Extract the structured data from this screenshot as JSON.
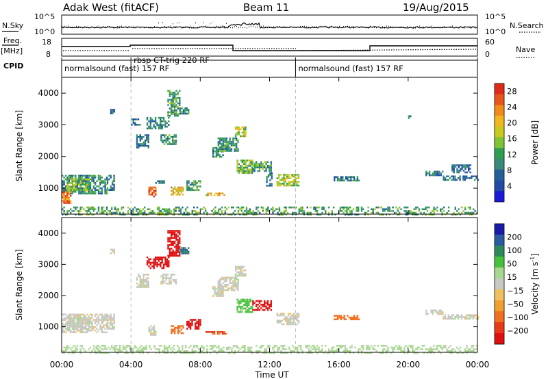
{
  "header": {
    "station": "Adak West (fitACF)",
    "beam": "Beam 11",
    "date": "19/Aug/2015"
  },
  "strips": {
    "nsky_label": "N.Sky",
    "nsearch_label": "N.Search",
    "noise_ticks": [
      "10^5",
      "10^0"
    ],
    "freq_label": "Freq.",
    "freq_unit": "[MHz]",
    "freq_ticks": [
      "18",
      "8"
    ],
    "nave_label": "Nave",
    "nave_ticks": [
      "60",
      "0"
    ],
    "cpid_label": "CPID",
    "cpid_segments": [
      {
        "label": "normalsound (fast) 157 RF",
        "start_h": 0,
        "end_h": 4.0
      },
      {
        "label": "rbsp CT-trig 220 RF",
        "start_h": 4.0,
        "end_h": 13.5
      },
      {
        "label": "normalsound (fast) 157 RF",
        "start_h": 13.5,
        "end_h": 24
      }
    ]
  },
  "chart_data": [
    {
      "type": "heatmap",
      "title": "Power",
      "xlabel": "Time UT",
      "ylabel": "Slant Range [km]",
      "xlim": [
        0,
        24
      ],
      "ylim": [
        180,
        4500
      ],
      "xticks": [
        "00:00",
        "04:00",
        "08:00",
        "12:00",
        "16:00",
        "20:00",
        "00:00"
      ],
      "yticks": [
        1000,
        2000,
        3000,
        4000
      ],
      "colorbar": {
        "label": "Power [dB]",
        "ticks": [
          4,
          8,
          12,
          16,
          20,
          24,
          28
        ],
        "range": [
          0,
          30
        ],
        "colors": [
          "#1a1ad8",
          "#2248a8",
          "#23609a",
          "#3a8a7a",
          "#2f9f4f",
          "#7fc433",
          "#c8c81e",
          "#f0b81c",
          "#f08a18",
          "#e85518",
          "#e02a18"
        ]
      },
      "patches": [
        {
          "t": 0.0,
          "t2": 2.6,
          "r": 820,
          "r2": 1420,
          "p": 10
        },
        {
          "t": 0.0,
          "t2": 0.5,
          "r": 560,
          "r2": 900,
          "p": 24
        },
        {
          "t": 0.3,
          "t2": 1.6,
          "r": 950,
          "r2": 1300,
          "p": 15
        },
        {
          "t": 2.6,
          "t2": 3.0,
          "r": 920,
          "r2": 1420,
          "p": 9
        },
        {
          "t": 2.8,
          "t2": 3.0,
          "r": 3350,
          "r2": 3500,
          "p": 8
        },
        {
          "t": 4.0,
          "t2": 4.5,
          "r": 3000,
          "r2": 3200,
          "p": 8
        },
        {
          "t": 4.3,
          "t2": 5.0,
          "r": 2300,
          "r2": 2700,
          "p": 8
        },
        {
          "t": 4.9,
          "t2": 6.2,
          "r": 2900,
          "r2": 3250,
          "p": 9
        },
        {
          "t": 5.0,
          "t2": 5.4,
          "r": 750,
          "r2": 1050,
          "p": 26
        },
        {
          "t": 5.4,
          "t2": 5.9,
          "r": 1150,
          "r2": 1250,
          "p": 9
        },
        {
          "t": 5.7,
          "t2": 6.6,
          "r": 2400,
          "r2": 2700,
          "p": 10
        },
        {
          "t": 6.1,
          "t2": 6.8,
          "r": 3300,
          "r2": 4100,
          "p": 12
        },
        {
          "t": 6.3,
          "t2": 7.0,
          "r": 780,
          "r2": 1050,
          "p": 20
        },
        {
          "t": 6.8,
          "t2": 7.3,
          "r": 3350,
          "r2": 3550,
          "p": 9
        },
        {
          "t": 7.2,
          "t2": 8.0,
          "r": 950,
          "r2": 1250,
          "p": 12
        },
        {
          "t": 8.3,
          "t2": 9.5,
          "r": 780,
          "r2": 860,
          "p": 20
        },
        {
          "t": 8.7,
          "t2": 9.3,
          "r": 2000,
          "r2": 2300,
          "p": 9
        },
        {
          "t": 9.0,
          "t2": 10.2,
          "r": 2200,
          "r2": 2600,
          "p": 11
        },
        {
          "t": 10.0,
          "t2": 10.6,
          "r": 2650,
          "r2": 2950,
          "p": 16
        },
        {
          "t": 10.1,
          "t2": 11.0,
          "r": 1500,
          "r2": 1900,
          "p": 14
        },
        {
          "t": 11.0,
          "t2": 12.1,
          "r": 1550,
          "r2": 1850,
          "p": 12
        },
        {
          "t": 11.8,
          "t2": 12.1,
          "r": 1100,
          "r2": 1500,
          "p": 9
        },
        {
          "t": 12.4,
          "t2": 13.7,
          "r": 1100,
          "r2": 1450,
          "p": 16
        },
        {
          "t": 15.7,
          "t2": 17.2,
          "r": 1220,
          "r2": 1380,
          "p": 9
        },
        {
          "t": 19.9,
          "t2": 20.1,
          "r": 3180,
          "r2": 3300,
          "p": 8
        },
        {
          "t": 21.0,
          "t2": 22.0,
          "r": 1400,
          "r2": 1550,
          "p": 8
        },
        {
          "t": 22.0,
          "t2": 24.0,
          "r": 1260,
          "r2": 1400,
          "p": 8
        },
        {
          "t": 22.5,
          "t2": 23.6,
          "r": 1500,
          "r2": 1750,
          "p": 7
        },
        {
          "t": 0.0,
          "t2": 24.0,
          "r": 180,
          "r2": 420,
          "p": 12
        }
      ]
    },
    {
      "type": "heatmap",
      "title": "Velocity",
      "xlabel": "Time UT",
      "ylabel": "Slant Range [km]",
      "xlim": [
        0,
        24
      ],
      "ylim": [
        180,
        4500
      ],
      "xticks": [
        "00:00",
        "04:00",
        "08:00",
        "12:00",
        "16:00",
        "20:00",
        "00:00"
      ],
      "yticks": [
        1000,
        2000,
        3000,
        4000
      ],
      "colorbar": {
        "label": "Velocity [m s",
        "label_sup": "-1",
        "label_end": "]",
        "ticks": [
          200,
          100,
          50,
          15,
          -15,
          -50,
          -100,
          -200
        ],
        "colors": [
          "#1a1aa8",
          "#2a5aa0",
          "#2f8a5a",
          "#46c23a",
          "#a8d890",
          "#c8c8c2",
          "#f0c060",
          "#f0a030",
          "#f07020",
          "#e83818",
          "#e01010"
        ]
      },
      "patches": [
        {
          "t": 0.0,
          "t2": 2.6,
          "r": 820,
          "r2": 1420,
          "v": 0
        },
        {
          "t": 0.3,
          "t2": 1.6,
          "r": 950,
          "r2": 1300,
          "v": 5
        },
        {
          "t": 2.6,
          "t2": 3.0,
          "r": 920,
          "r2": 1420,
          "v": 0
        },
        {
          "t": 2.8,
          "t2": 3.0,
          "r": 3350,
          "r2": 3500,
          "v": 0
        },
        {
          "t": 4.3,
          "t2": 5.0,
          "r": 2300,
          "r2": 2700,
          "v": 0
        },
        {
          "t": 4.9,
          "t2": 6.2,
          "r": 2900,
          "r2": 3250,
          "v": -230
        },
        {
          "t": 5.0,
          "t2": 5.4,
          "r": 750,
          "r2": 1050,
          "v": 0
        },
        {
          "t": 5.7,
          "t2": 6.6,
          "r": 2400,
          "r2": 2700,
          "v": 0
        },
        {
          "t": 6.1,
          "t2": 6.8,
          "r": 3300,
          "r2": 4100,
          "v": -230
        },
        {
          "t": 6.3,
          "t2": 7.0,
          "r": 780,
          "r2": 1050,
          "v": -120
        },
        {
          "t": 6.8,
          "t2": 7.3,
          "r": 3350,
          "r2": 3550,
          "v": 150
        },
        {
          "t": 7.2,
          "t2": 8.0,
          "r": 950,
          "r2": 1250,
          "v": -230
        },
        {
          "t": 8.3,
          "t2": 9.5,
          "r": 780,
          "r2": 860,
          "v": -150
        },
        {
          "t": 8.7,
          "t2": 9.3,
          "r": 2000,
          "r2": 2300,
          "v": 0
        },
        {
          "t": 9.0,
          "t2": 10.2,
          "r": 2200,
          "r2": 2600,
          "v": 0
        },
        {
          "t": 10.0,
          "t2": 10.6,
          "r": 2650,
          "r2": 2950,
          "v": 0
        },
        {
          "t": 10.1,
          "t2": 11.0,
          "r": 1500,
          "r2": 1900,
          "v": 60
        },
        {
          "t": 11.0,
          "t2": 12.1,
          "r": 1550,
          "r2": 1850,
          "v": -230
        },
        {
          "t": 12.4,
          "t2": 13.7,
          "r": 1100,
          "r2": 1450,
          "v": 0
        },
        {
          "t": 15.7,
          "t2": 17.2,
          "r": 1220,
          "r2": 1380,
          "v": -120
        },
        {
          "t": 21.0,
          "t2": 22.0,
          "r": 1400,
          "r2": 1550,
          "v": 0
        },
        {
          "t": 22.0,
          "t2": 24.0,
          "r": 1260,
          "r2": 1400,
          "v": 0
        },
        {
          "t": 0.0,
          "t2": 24.0,
          "r": 180,
          "r2": 420,
          "v": 30
        }
      ]
    }
  ]
}
